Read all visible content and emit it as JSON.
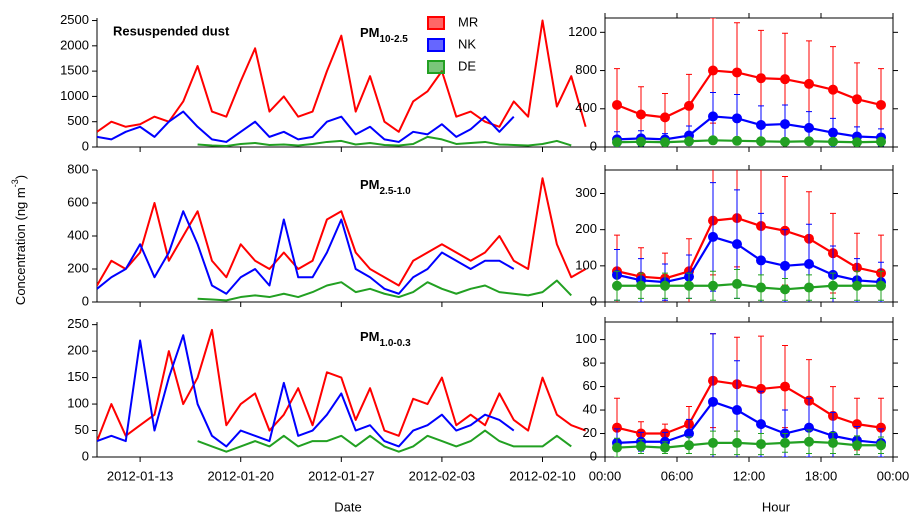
{
  "y_label": [
    "Concentration (ng m",
    "-3",
    ")"
  ],
  "x_labels": [
    "Date",
    "Hour"
  ],
  "chart_data": [
    {
      "type": "line",
      "title": [
        "PM",
        "10-2.5"
      ],
      "annotation": "Resuspended dust",
      "x": [
        "2012-01-10",
        "2012-01-11",
        "2012-01-12",
        "2012-01-13",
        "2012-01-14",
        "2012-01-15",
        "2012-01-16",
        "2012-01-17",
        "2012-01-18",
        "2012-01-19",
        "2012-01-20",
        "2012-01-21",
        "2012-01-22",
        "2012-01-23",
        "2012-01-24",
        "2012-01-25",
        "2012-01-26",
        "2012-01-27",
        "2012-01-28",
        "2012-01-29",
        "2012-01-30",
        "2012-01-31",
        "2012-02-01",
        "2012-02-02",
        "2012-02-03",
        "2012-02-04",
        "2012-02-05",
        "2012-02-06",
        "2012-02-07",
        "2012-02-08",
        "2012-02-09",
        "2012-02-10",
        "2012-02-11",
        "2012-02-12",
        "2012-02-13"
      ],
      "xlim": [
        "2012-01-10",
        "2012-02-14"
      ],
      "ylim": [
        0,
        2550
      ],
      "yticks": [
        0,
        500,
        1000,
        1500,
        2000,
        2500
      ],
      "series": [
        {
          "name": "MR",
          "color": "#ff0000",
          "values": [
            300,
            500,
            400,
            450,
            600,
            500,
            900,
            1600,
            700,
            600,
            1300,
            1950,
            700,
            1000,
            600,
            700,
            1500,
            2200,
            700,
            1400,
            500,
            300,
            900,
            1100,
            1500,
            600,
            700,
            500,
            400,
            900,
            600,
            2500,
            800,
            1400,
            400
          ]
        },
        {
          "name": "NK",
          "color": "#0000ff",
          "values": [
            200,
            150,
            300,
            400,
            200,
            500,
            700,
            400,
            150,
            100,
            300,
            500,
            200,
            300,
            150,
            200,
            500,
            600,
            250,
            400,
            150,
            100,
            300,
            250,
            450,
            200,
            350,
            600,
            300,
            600,
            null,
            null,
            null,
            null,
            null
          ]
        },
        {
          "name": "DE",
          "color": "#22a022",
          "values": [
            null,
            null,
            null,
            null,
            null,
            null,
            null,
            50,
            30,
            20,
            60,
            80,
            40,
            50,
            30,
            60,
            100,
            120,
            50,
            80,
            40,
            30,
            60,
            200,
            150,
            60,
            80,
            100,
            50,
            40,
            30,
            60,
            120,
            30,
            null
          ]
        }
      ]
    },
    {
      "type": "line",
      "x": [
        1,
        3,
        5,
        7,
        9,
        11,
        13,
        15,
        17,
        19,
        21,
        23
      ],
      "xlim": [
        0,
        24
      ],
      "ylim": [
        0,
        1350
      ],
      "yticks": [
        0,
        400,
        800,
        1200
      ],
      "series": [
        {
          "color": "#ff0000",
          "values": [
            440,
            340,
            310,
            430,
            800,
            780,
            720,
            710,
            660,
            600,
            500,
            440
          ],
          "errors": [
            380,
            290,
            250,
            330,
            550,
            520,
            500,
            480,
            450,
            450,
            380,
            380
          ]
        },
        {
          "color": "#0000ff",
          "values": [
            80,
            90,
            80,
            120,
            320,
            300,
            230,
            240,
            200,
            150,
            110,
            100
          ],
          "errors": [
            80,
            80,
            60,
            100,
            250,
            250,
            200,
            200,
            170,
            150,
            100,
            90
          ]
        },
        {
          "color": "#22a022",
          "values": [
            50,
            55,
            50,
            60,
            70,
            65,
            60,
            55,
            60,
            55,
            50,
            55
          ],
          "errors": [
            30,
            30,
            25,
            30,
            30,
            30,
            25,
            25,
            30,
            25,
            25,
            25
          ]
        }
      ]
    },
    {
      "type": "line",
      "title": [
        "PM",
        "2.5-1.0"
      ],
      "x": [
        "2012-01-10",
        "2012-01-11",
        "2012-01-12",
        "2012-01-13",
        "2012-01-14",
        "2012-01-15",
        "2012-01-16",
        "2012-01-17",
        "2012-01-18",
        "2012-01-19",
        "2012-01-20",
        "2012-01-21",
        "2012-01-22",
        "2012-01-23",
        "2012-01-24",
        "2012-01-25",
        "2012-01-26",
        "2012-01-27",
        "2012-01-28",
        "2012-01-29",
        "2012-01-30",
        "2012-01-31",
        "2012-02-01",
        "2012-02-02",
        "2012-02-03",
        "2012-02-04",
        "2012-02-05",
        "2012-02-06",
        "2012-02-07",
        "2012-02-08",
        "2012-02-09",
        "2012-02-10",
        "2012-02-11",
        "2012-02-12",
        "2012-02-13"
      ],
      "xlim": [
        "2012-01-10",
        "2012-02-14"
      ],
      "ylim": [
        0,
        800
      ],
      "yticks": [
        0,
        200,
        400,
        600,
        800
      ],
      "series": [
        {
          "color": "#ff0000",
          "values": [
            100,
            250,
            200,
            300,
            600,
            250,
            400,
            550,
            250,
            150,
            350,
            250,
            200,
            300,
            200,
            250,
            500,
            550,
            300,
            200,
            150,
            100,
            250,
            300,
            350,
            300,
            250,
            300,
            400,
            250,
            200,
            750,
            350,
            150,
            200
          ]
        },
        {
          "color": "#0000ff",
          "values": [
            80,
            150,
            200,
            350,
            150,
            300,
            550,
            350,
            100,
            50,
            150,
            200,
            100,
            500,
            150,
            150,
            300,
            500,
            200,
            150,
            80,
            50,
            150,
            200,
            300,
            250,
            200,
            250,
            250,
            200,
            null,
            null,
            null,
            null,
            null
          ]
        },
        {
          "color": "#22a022",
          "values": [
            null,
            null,
            null,
            null,
            null,
            null,
            null,
            20,
            15,
            10,
            30,
            40,
            30,
            50,
            30,
            60,
            100,
            120,
            60,
            80,
            50,
            30,
            60,
            120,
            80,
            50,
            80,
            100,
            60,
            50,
            40,
            60,
            130,
            40,
            null
          ]
        }
      ]
    },
    {
      "type": "line",
      "x": [
        1,
        3,
        5,
        7,
        9,
        11,
        13,
        15,
        17,
        19,
        21,
        23
      ],
      "xlim": [
        0,
        24
      ],
      "ylim": [
        0,
        365
      ],
      "yticks": [
        0,
        100,
        200,
        300
      ],
      "series": [
        {
          "color": "#ff0000",
          "values": [
            85,
            70,
            65,
            85,
            225,
            232,
            210,
            197,
            175,
            135,
            95,
            80
          ],
          "errors": [
            100,
            80,
            70,
            90,
            150,
            135,
            160,
            150,
            130,
            110,
            95,
            105
          ]
        },
        {
          "color": "#0000ff",
          "values": [
            75,
            60,
            55,
            70,
            180,
            160,
            115,
            100,
            105,
            75,
            60,
            55
          ],
          "errors": [
            70,
            60,
            50,
            60,
            150,
            150,
            130,
            100,
            110,
            80,
            60,
            55
          ]
        },
        {
          "color": "#22a022",
          "values": [
            45,
            45,
            45,
            45,
            45,
            50,
            40,
            35,
            40,
            45,
            45,
            45
          ],
          "errors": [
            40,
            35,
            35,
            35,
            40,
            40,
            35,
            30,
            35,
            35,
            40,
            40
          ]
        }
      ]
    },
    {
      "type": "line",
      "title": [
        "PM",
        "1.0-0.3"
      ],
      "x": [
        "2012-01-10",
        "2012-01-11",
        "2012-01-12",
        "2012-01-13",
        "2012-01-14",
        "2012-01-15",
        "2012-01-16",
        "2012-01-17",
        "2012-01-18",
        "2012-01-19",
        "2012-01-20",
        "2012-01-21",
        "2012-01-22",
        "2012-01-23",
        "2012-01-24",
        "2012-01-25",
        "2012-01-26",
        "2012-01-27",
        "2012-01-28",
        "2012-01-29",
        "2012-01-30",
        "2012-01-31",
        "2012-02-01",
        "2012-02-02",
        "2012-02-03",
        "2012-02-04",
        "2012-02-05",
        "2012-02-06",
        "2012-02-07",
        "2012-02-08",
        "2012-02-09",
        "2012-02-10",
        "2012-02-11",
        "2012-02-12",
        "2012-02-13"
      ],
      "xlim": [
        "2012-01-10",
        "2012-02-14"
      ],
      "ylim": [
        0,
        255
      ],
      "yticks": [
        0,
        50,
        100,
        150,
        200,
        250
      ],
      "xticks": [
        "2012-01-13",
        "2012-01-20",
        "2012-01-27",
        "2012-02-03",
        "2012-02-10"
      ],
      "series": [
        {
          "color": "#ff0000",
          "values": [
            30,
            100,
            40,
            60,
            80,
            200,
            100,
            150,
            240,
            60,
            100,
            120,
            50,
            80,
            130,
            60,
            160,
            150,
            70,
            130,
            50,
            40,
            110,
            100,
            150,
            60,
            80,
            60,
            120,
            70,
            50,
            150,
            80,
            60,
            50
          ]
        },
        {
          "color": "#0000ff",
          "values": [
            30,
            40,
            30,
            220,
            50,
            150,
            230,
            100,
            40,
            20,
            50,
            40,
            30,
            140,
            40,
            50,
            80,
            120,
            50,
            60,
            30,
            20,
            50,
            60,
            80,
            50,
            60,
            80,
            70,
            50,
            null,
            null,
            null,
            null,
            null
          ]
        },
        {
          "color": "#22a022",
          "values": [
            null,
            null,
            null,
            null,
            null,
            null,
            null,
            30,
            20,
            10,
            20,
            30,
            20,
            40,
            20,
            30,
            30,
            40,
            20,
            40,
            20,
            10,
            20,
            40,
            30,
            20,
            30,
            50,
            30,
            20,
            20,
            20,
            40,
            20,
            null
          ]
        }
      ]
    },
    {
      "type": "line",
      "x": [
        1,
        3,
        5,
        7,
        9,
        11,
        13,
        15,
        17,
        19,
        21,
        23
      ],
      "xlim": [
        0,
        24
      ],
      "ylim": [
        0,
        115
      ],
      "yticks": [
        0,
        20,
        40,
        60,
        80,
        100
      ],
      "xticks": [
        {
          "value": 0,
          "label": "00:00"
        },
        {
          "value": 6,
          "label": "06:00"
        },
        {
          "value": 12,
          "label": "12:00"
        },
        {
          "value": 18,
          "label": "18:00"
        },
        {
          "value": 24,
          "label": "00:00"
        }
      ],
      "series": [
        {
          "color": "#ff0000",
          "values": [
            25,
            20,
            20,
            28,
            65,
            62,
            58,
            60,
            48,
            35,
            28,
            25
          ],
          "errors": [
            25,
            10,
            8,
            15,
            40,
            40,
            45,
            35,
            35,
            25,
            22,
            25
          ]
        },
        {
          "color": "#0000ff",
          "values": [
            12,
            13,
            13,
            20,
            47,
            40,
            28,
            20,
            25,
            18,
            14,
            12
          ],
          "errors": [
            12,
            8,
            8,
            12,
            58,
            42,
            28,
            20,
            25,
            20,
            12,
            12
          ]
        },
        {
          "color": "#22a022",
          "values": [
            8,
            9,
            8,
            10,
            12,
            12,
            11,
            12,
            13,
            12,
            10,
            10
          ],
          "errors": [
            8,
            6,
            5,
            7,
            10,
            10,
            9,
            8,
            10,
            9,
            8,
            7
          ]
        }
      ]
    }
  ]
}
